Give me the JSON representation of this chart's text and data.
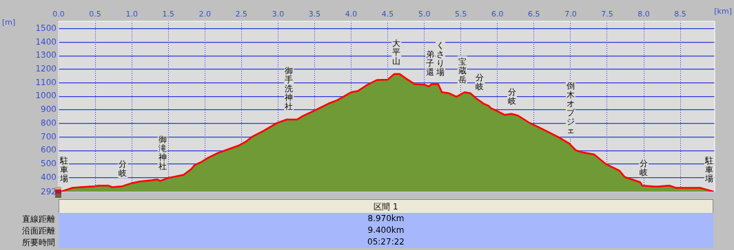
{
  "chart_data": {
    "type": "area",
    "xlabel": "[km]",
    "ylabel": "[m]",
    "x": [
      0,
      0.05,
      0.19,
      0.3,
      0.49,
      0.55,
      0.68,
      0.73,
      0.87,
      1.01,
      1.11,
      1.27,
      1.35,
      1.39,
      1.49,
      1.62,
      1.71,
      1.81,
      1.86,
      1.96,
      2.05,
      2.18,
      2.33,
      2.46,
      2.57,
      2.65,
      2.8,
      2.99,
      3.12,
      3.26,
      3.34,
      3.5,
      3.69,
      3.81,
      4.0,
      4.09,
      4.21,
      4.35,
      4.5,
      4.59,
      4.66,
      4.75,
      4.87,
      5.0,
      5.06,
      5.1,
      5.19,
      5.24,
      5.34,
      5.44,
      5.55,
      5.63,
      5.72,
      5.81,
      5.88,
      5.91,
      6.0,
      6.1,
      6.19,
      6.28,
      6.44,
      6.6,
      6.82,
      6.98,
      7.07,
      7.17,
      7.32,
      7.48,
      7.67,
      7.74,
      7.95,
      7.98,
      8.17,
      8.35,
      8.44,
      8.77,
      8.96
    ],
    "series": [
      {
        "color": "#6f9a35",
        "values": [
          295,
          299,
          324,
          329,
          336,
          341,
          341,
          329,
          336,
          360,
          371,
          380,
          386,
          375,
          396,
          410,
          420,
          461,
          492,
          518,
          548,
          582,
          611,
          636,
          669,
          703,
          745,
          804,
          829,
          829,
          855,
          896,
          947,
          972,
          1031,
          1040,
          1082,
          1121,
          1124,
          1166,
          1166,
          1132,
          1090,
          1087,
          1073,
          1090,
          1090,
          1031,
          1023,
          997,
          1031,
          1023,
          981,
          947,
          930,
          914,
          891,
          863,
          871,
          858,
          804,
          762,
          703,
          652,
          602,
          585,
          572,
          501,
          450,
          404,
          366,
          341,
          333,
          341,
          324,
          324,
          295
        ]
      }
    ],
    "xlim": [
      0,
      8.97
    ],
    "ylim": [
      292,
      1555
    ],
    "xticks": [
      {
        "value": 0,
        "label": "0.0"
      },
      0.5,
      {
        "value": 1,
        "label": "1.0"
      },
      1.5,
      {
        "value": 2,
        "label": "2.0"
      },
      2.5,
      {
        "value": 3,
        "label": "3.0"
      },
      3.5,
      {
        "value": 4,
        "label": "4.0"
      },
      4.5,
      {
        "value": 5,
        "label": "5.0"
      },
      5.5,
      {
        "value": 6,
        "label": "6.0"
      },
      6.5,
      {
        "value": 7,
        "label": "7.0"
      },
      7.5,
      {
        "value": 8,
        "label": "8.0"
      },
      8.5
    ],
    "yticks": [
      292,
      400,
      500,
      600,
      700,
      800,
      900,
      1000,
      1100,
      1200,
      1300,
      1400,
      1500
    ],
    "grid": true,
    "legend": false,
    "annotations": [
      {
        "text": "駐車場",
        "x": 0,
        "y": 297
      },
      {
        "text": "分岐",
        "x": 0.88,
        "y": 336
      },
      {
        "text": "御滝神社",
        "x": 1.42,
        "y": 386
      },
      {
        "text": "御手洗神社",
        "x": 3.15,
        "y": 829
      },
      {
        "text": "大平山",
        "x": 4.62,
        "y": 1166
      },
      {
        "text": "弟子還",
        "x": 5.08,
        "y": 1085
      },
      {
        "text": "くさり場",
        "x": 5.22,
        "y": 1085
      },
      {
        "text": "宝蔵岳",
        "x": 5.52,
        "y": 1030
      },
      {
        "text": "分岐",
        "x": 5.76,
        "y": 975
      },
      {
        "text": "分岐",
        "x": 6.2,
        "y": 871
      },
      {
        "text": "倒木オブジェ",
        "x": 7.0,
        "y": 652
      },
      {
        "text": "分岐",
        "x": 8.0,
        "y": 341
      },
      {
        "text": "駐車場",
        "x": 8.95,
        "y": 297
      },
      "区間 1",
      "直線距離",
      "8.970km",
      "沿面距離",
      "9.400km",
      "所要時間",
      "05:27:22"
    ]
  }
}
